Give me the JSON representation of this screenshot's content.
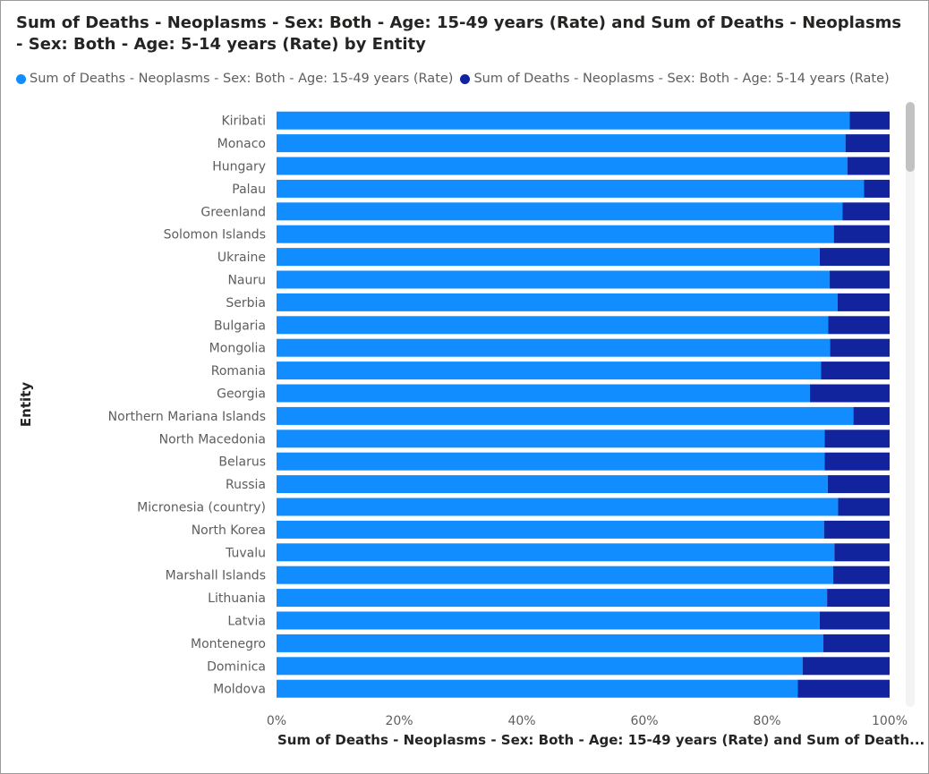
{
  "chart_data": {
    "type": "bar",
    "orientation": "horizontal",
    "stacked": "100%",
    "title": "Sum of Deaths - Neoplasms - Sex: Both - Age: 15-49 years (Rate) and Sum of Deaths - Neoplasms - Sex: Both - Age: 5-14 years (Rate) by Entity",
    "xlabel": "Sum of Deaths - Neoplasms - Sex: Both - Age: 15-49 years (Rate) and Sum of Death...",
    "ylabel": "Entity",
    "xlim": [
      0,
      100
    ],
    "x_ticks": [
      "0%",
      "20%",
      "40%",
      "60%",
      "80%",
      "100%"
    ],
    "grid": false,
    "legend_position": "top-left",
    "categories": [
      "Kiribati",
      "Monaco",
      "Hungary",
      "Palau",
      "Greenland",
      "Solomon Islands",
      "Ukraine",
      "Nauru",
      "Serbia",
      "Bulgaria",
      "Mongolia",
      "Romania",
      "Georgia",
      "Northern Mariana Islands",
      "North Macedonia",
      "Belarus",
      "Russia",
      "Micronesia (country)",
      "North Korea",
      "Tuvalu",
      "Marshall Islands",
      "Lithuania",
      "Latvia",
      "Montenegro",
      "Dominica",
      "Moldova"
    ],
    "series": [
      {
        "name": "Sum of Deaths - Neoplasms - Sex: Both - Age: 15-49 years (Rate)",
        "color": "#118DFF",
        "values": [
          93.5,
          92.8,
          93.1,
          95.8,
          92.3,
          90.9,
          88.6,
          90.2,
          91.5,
          90.0,
          90.3,
          88.8,
          87.0,
          94.1,
          89.4,
          89.4,
          89.9,
          91.6,
          89.3,
          91.0,
          90.8,
          89.8,
          88.6,
          89.2,
          85.8,
          85.0
        ]
      },
      {
        "name": "Sum of Deaths - Neoplasms - Sex: Both - Age: 5-14 years (Rate)",
        "color": "#12239E",
        "values": [
          6.5,
          7.2,
          6.9,
          4.2,
          7.7,
          9.1,
          11.4,
          9.8,
          8.5,
          10.0,
          9.7,
          11.2,
          13.0,
          5.9,
          10.6,
          10.6,
          10.1,
          8.4,
          10.7,
          9.0,
          9.2,
          10.2,
          11.4,
          10.8,
          14.2,
          15.0
        ]
      }
    ]
  }
}
